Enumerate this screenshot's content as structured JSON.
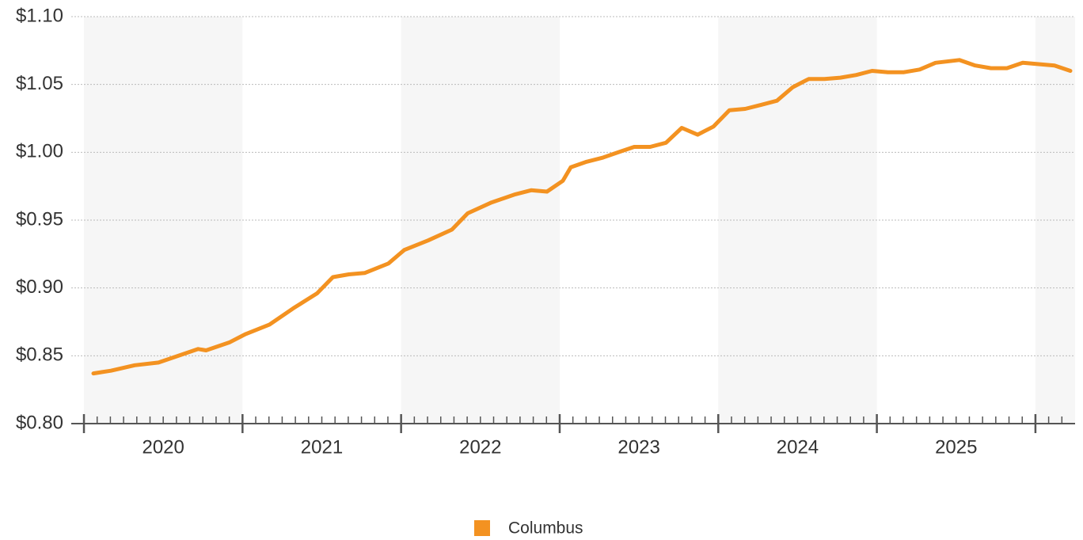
{
  "chart_data": {
    "type": "line",
    "x": [
      2020.06,
      2020.17,
      2020.32,
      2020.47,
      2020.62,
      2020.72,
      2020.77,
      2020.92,
      2021.02,
      2021.17,
      2021.32,
      2021.47,
      2021.57,
      2021.67,
      2021.77,
      2021.92,
      2022.02,
      2022.17,
      2022.32,
      2022.42,
      2022.57,
      2022.72,
      2022.82,
      2022.92,
      2023.02,
      2023.07,
      2023.17,
      2023.27,
      2023.37,
      2023.47,
      2023.57,
      2023.67,
      2023.77,
      2023.87,
      2023.97,
      2024.07,
      2024.17,
      2024.27,
      2024.37,
      2024.47,
      2024.57,
      2024.67,
      2024.77,
      2024.87,
      2024.97,
      2025.07,
      2025.17,
      2025.27,
      2025.37,
      2025.52,
      2025.62,
      2025.72,
      2025.82,
      2025.92,
      2026.02,
      2026.12,
      2026.22
    ],
    "series": [
      {
        "name": "Columbus",
        "color": "#f39221",
        "values": [
          0.837,
          0.839,
          0.843,
          0.845,
          0.851,
          0.855,
          0.854,
          0.86,
          0.866,
          0.873,
          0.885,
          0.896,
          0.908,
          0.91,
          0.911,
          0.918,
          0.928,
          0.935,
          0.943,
          0.955,
          0.963,
          0.969,
          0.972,
          0.971,
          0.979,
          0.989,
          0.993,
          0.996,
          1.0,
          1.004,
          1.004,
          1.007,
          1.018,
          1.013,
          1.019,
          1.031,
          1.032,
          1.035,
          1.038,
          1.048,
          1.054,
          1.054,
          1.055,
          1.057,
          1.06,
          1.059,
          1.059,
          1.061,
          1.066,
          1.068,
          1.064,
          1.062,
          1.062,
          1.066,
          1.065,
          1.064,
          1.06
        ]
      }
    ],
    "xlim": [
      2019.92,
      2026.25
    ],
    "xticks": [
      {
        "value": 2020.5,
        "label": "2020"
      },
      {
        "value": 2021.5,
        "label": "2021"
      },
      {
        "value": 2022.5,
        "label": "2022"
      },
      {
        "value": 2023.5,
        "label": "2023"
      },
      {
        "value": 2024.5,
        "label": "2024"
      },
      {
        "value": 2025.5,
        "label": "2025"
      }
    ],
    "ylim": [
      0.8,
      1.1
    ],
    "yticks": [
      {
        "value": 0.8,
        "label": "$0.80"
      },
      {
        "value": 0.85,
        "label": "$0.85"
      },
      {
        "value": 0.9,
        "label": "$0.90"
      },
      {
        "value": 0.95,
        "label": "$0.95"
      },
      {
        "value": 1.0,
        "label": "$1.00"
      },
      {
        "value": 1.05,
        "label": "$1.05"
      },
      {
        "value": 1.1,
        "label": "$1.10"
      }
    ],
    "grid": true,
    "legend": "bottom"
  }
}
